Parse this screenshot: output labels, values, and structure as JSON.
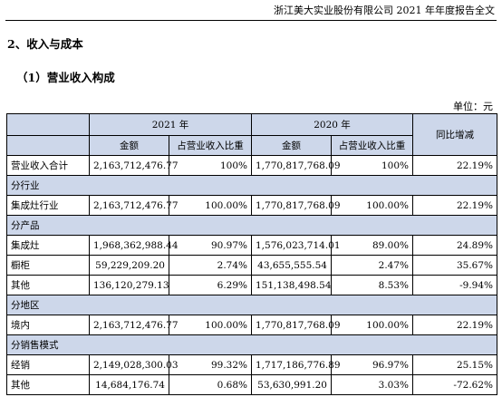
{
  "header": {
    "title": "浙江美大实业股份有限公司 2021 年年度报告全文"
  },
  "section_title": "2、收入与成本",
  "sub_title": "（1）营业收入构成",
  "unit_label": "单位：元",
  "table": {
    "year_2021": "2021 年",
    "year_2020": "2020 年",
    "yoy": "同比增减",
    "col_amount": "金额",
    "col_ratio": "占营业收入比重",
    "total_row": {
      "label": "营业收入合计",
      "a2021": "2,163,712,476.77",
      "r2021": "100%",
      "a2020": "1,770,817,768.09",
      "r2020": "100%",
      "yoy": "22.19%"
    },
    "sections": [
      {
        "title": "分行业",
        "rows": [
          {
            "label": "集成灶行业",
            "a2021": "2,163,712,476.77",
            "r2021": "100.00%",
            "a2020": "1,770,817,768.09",
            "r2020": "100.00%",
            "yoy": "22.19%"
          }
        ]
      },
      {
        "title": "分产品",
        "rows": [
          {
            "label": "集成灶",
            "a2021": "1,968,362,988.44",
            "r2021": "90.97%",
            "a2020": "1,576,023,714.01",
            "r2020": "89.00%",
            "yoy": "24.89%"
          },
          {
            "label": "橱柜",
            "a2021": "59,229,209.20",
            "r2021": "2.74%",
            "a2020": "43,655,555.54",
            "r2020": "2.47%",
            "yoy": "35.67%"
          },
          {
            "label": "其他",
            "a2021": "136,120,279.13",
            "r2021": "6.29%",
            "a2020": "151,138,498.54",
            "r2020": "8.53%",
            "yoy": "-9.94%"
          }
        ]
      },
      {
        "title": "分地区",
        "rows": [
          {
            "label": "境内",
            "a2021": "2,163,712,476.77",
            "r2021": "100.00%",
            "a2020": "1,770,817,768.09",
            "r2020": "100.00%",
            "yoy": "22.19%"
          }
        ]
      },
      {
        "title": "分销售模式",
        "rows": [
          {
            "label": "经销",
            "a2021": "2,149,028,300.03",
            "r2021": "99.32%",
            "a2020": "1,717,186,776.89",
            "r2020": "96.97%",
            "yoy": "25.15%"
          },
          {
            "label": "其他",
            "a2021": "14,684,176.74",
            "r2021": "0.68%",
            "a2020": "53,630,991.20",
            "r2020": "3.03%",
            "yoy": "-72.62%"
          }
        ]
      }
    ]
  }
}
